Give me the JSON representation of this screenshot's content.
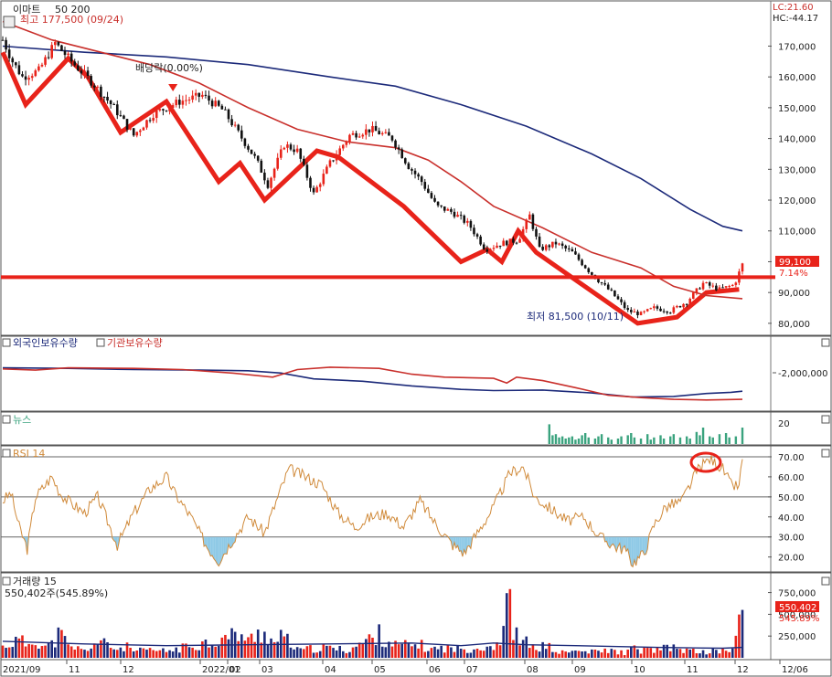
{
  "colors": {
    "up": "#e8231a",
    "down": "#111111",
    "ma50": "#c9302c",
    "ma200": "#1c2a7a",
    "support": "#e8231a",
    "foreign": "#1c2a7a",
    "inst": "#c9302c",
    "news": "#3aa37e",
    "rsi": "#d08a3a",
    "rsi_fill": "#8ec9e6",
    "vol_up": "#e8231a",
    "vol_down": "#1c2a7a",
    "vol_ma": "#1c2a7a",
    "grid": "#c8c8c8",
    "frame": "#555555"
  },
  "header": {
    "stock_name": "이마트",
    "ma_params": "50   200",
    "high_label": "최고 177,500 (09/24)",
    "lc": "LC:21.60",
    "hc": "HC:-44.17"
  },
  "annotations": {
    "dividend": "배당락(0.00%)",
    "low": "최저 81,500 (10/11)",
    "last_price": "99,100",
    "last_change": "7.14%"
  },
  "panels": {
    "holdings": {
      "foreign_label": "외국인보유수량",
      "inst_label": "기관보유수량",
      "tick": "-2,000,000"
    },
    "news": {
      "label": "뉴스",
      "tick": "20"
    },
    "rsi": {
      "label": "RSI 14"
    },
    "volume": {
      "label": "거래량  15",
      "sub_label": "550,402주(545.89%)",
      "last_volume": "550,402",
      "last_pct": "545.89%"
    }
  },
  "chart_data": [
    {
      "type": "candlestick",
      "x_ticks": [
        "2021/09",
        "11",
        "12",
        "2022/01",
        "02",
        "03",
        "04",
        "05",
        "06",
        "07",
        "08",
        "09",
        "10",
        "11",
        "12",
        "12/06"
      ],
      "y_ticks": [
        "170,000",
        "160,000",
        "150,000",
        "140,000",
        "130,000",
        "120,000",
        "110,000",
        "100,000",
        "90,000",
        "80,000"
      ],
      "ylim": [
        77000,
        182000
      ],
      "close": [
        [
          0,
          172000
        ],
        [
          6,
          165000
        ],
        [
          12,
          160000
        ],
        [
          22,
          162000
        ],
        [
          32,
          171000
        ],
        [
          42,
          165000
        ],
        [
          55,
          158000
        ],
        [
          68,
          150000
        ],
        [
          80,
          141000
        ],
        [
          92,
          148000
        ],
        [
          108,
          152000
        ],
        [
          122,
          154000
        ],
        [
          135,
          149000
        ],
        [
          145,
          141000
        ],
        [
          155,
          133000
        ],
        [
          162,
          125000
        ],
        [
          172,
          138000
        ],
        [
          180,
          136000
        ],
        [
          190,
          122000
        ],
        [
          200,
          132000
        ],
        [
          212,
          141000
        ],
        [
          225,
          143000
        ],
        [
          238,
          140000
        ],
        [
          248,
          131000
        ],
        [
          256,
          126000
        ],
        [
          265,
          118000
        ],
        [
          275,
          116000
        ],
        [
          285,
          112000
        ],
        [
          295,
          104000
        ],
        [
          305,
          106000
        ],
        [
          315,
          107000
        ],
        [
          322,
          115000
        ],
        [
          328,
          104000
        ],
        [
          338,
          106000
        ],
        [
          348,
          103000
        ],
        [
          360,
          96000
        ],
        [
          372,
          90000
        ],
        [
          382,
          84000
        ],
        [
          390,
          83000
        ],
        [
          398,
          85000
        ],
        [
          408,
          84000
        ],
        [
          418,
          87000
        ],
        [
          428,
          93000
        ],
        [
          438,
          91000
        ],
        [
          447,
          92500
        ],
        [
          452,
          99100
        ]
      ],
      "ma50": [
        [
          0,
          178000
        ],
        [
          30,
          172000
        ],
        [
          60,
          168000
        ],
        [
          90,
          164000
        ],
        [
          120,
          158000
        ],
        [
          150,
          150000
        ],
        [
          180,
          143000
        ],
        [
          210,
          139000
        ],
        [
          240,
          137000
        ],
        [
          260,
          133000
        ],
        [
          280,
          126000
        ],
        [
          300,
          118000
        ],
        [
          330,
          111000
        ],
        [
          360,
          103000
        ],
        [
          390,
          98000
        ],
        [
          410,
          92000
        ],
        [
          430,
          89000
        ],
        [
          452,
          88000
        ]
      ],
      "ma200": [
        [
          0,
          170000
        ],
        [
          50,
          168000
        ],
        [
          100,
          166500
        ],
        [
          150,
          164000
        ],
        [
          200,
          160000
        ],
        [
          240,
          157000
        ],
        [
          280,
          151000
        ],
        [
          320,
          144000
        ],
        [
          360,
          135000
        ],
        [
          390,
          127000
        ],
        [
          420,
          117000
        ],
        [
          440,
          111500
        ],
        [
          452,
          110000
        ]
      ],
      "support_level": 95000,
      "zigzag": [
        [
          0,
          168000
        ],
        [
          14,
          151000
        ],
        [
          40,
          166000
        ],
        [
          52,
          160000
        ],
        [
          72,
          142000
        ],
        [
          100,
          152000
        ],
        [
          132,
          126000
        ],
        [
          145,
          132000
        ],
        [
          160,
          120000
        ],
        [
          192,
          136000
        ],
        [
          205,
          134000
        ],
        [
          245,
          118000
        ],
        [
          280,
          100000
        ],
        [
          296,
          104000
        ],
        [
          305,
          100000
        ],
        [
          315,
          110000
        ],
        [
          326,
          103000
        ],
        [
          388,
          80000
        ],
        [
          412,
          82000
        ],
        [
          430,
          90000
        ],
        [
          450,
          91000
        ]
      ],
      "high_marker": 177500,
      "dividend_marker_x": 104
    },
    {
      "type": "line",
      "name_foreign": "외국인보유수량",
      "name_inst": "기관보유수량",
      "foreign": [
        [
          0,
          0.29
        ],
        [
          40,
          0.3
        ],
        [
          80,
          0.32
        ],
        [
          120,
          0.33
        ],
        [
          150,
          0.34
        ],
        [
          170,
          0.38
        ],
        [
          190,
          0.48
        ],
        [
          220,
          0.52
        ],
        [
          250,
          0.6
        ],
        [
          280,
          0.66
        ],
        [
          300,
          0.68
        ],
        [
          330,
          0.67
        ],
        [
          360,
          0.72
        ],
        [
          385,
          0.79
        ],
        [
          410,
          0.78
        ],
        [
          430,
          0.73
        ],
        [
          445,
          0.71
        ],
        [
          452,
          0.69
        ]
      ],
      "inst": [
        [
          0,
          0.31
        ],
        [
          20,
          0.33
        ],
        [
          40,
          0.29
        ],
        [
          80,
          0.3
        ],
        [
          110,
          0.32
        ],
        [
          140,
          0.38
        ],
        [
          165,
          0.45
        ],
        [
          180,
          0.32
        ],
        [
          200,
          0.28
        ],
        [
          230,
          0.3
        ],
        [
          250,
          0.4
        ],
        [
          270,
          0.45
        ],
        [
          300,
          0.47
        ],
        [
          308,
          0.55
        ],
        [
          314,
          0.45
        ],
        [
          330,
          0.51
        ],
        [
          350,
          0.63
        ],
        [
          370,
          0.76
        ],
        [
          390,
          0.8
        ],
        [
          410,
          0.83
        ],
        [
          430,
          0.84
        ],
        [
          452,
          0.83
        ]
      ]
    },
    {
      "type": "bar",
      "name": "뉴스",
      "values": [
        [
          334,
          18
        ],
        [
          336,
          8
        ],
        [
          338,
          9
        ],
        [
          340,
          6
        ],
        [
          342,
          7
        ],
        [
          344,
          5
        ],
        [
          346,
          6
        ],
        [
          348,
          7
        ],
        [
          350,
          4
        ],
        [
          352,
          5
        ],
        [
          354,
          8
        ],
        [
          356,
          10
        ],
        [
          358,
          6
        ],
        [
          362,
          5
        ],
        [
          364,
          7
        ],
        [
          366,
          9
        ],
        [
          370,
          6
        ],
        [
          372,
          4
        ],
        [
          376,
          5
        ],
        [
          378,
          7
        ],
        [
          382,
          8
        ],
        [
          384,
          10
        ],
        [
          386,
          6
        ],
        [
          390,
          5
        ],
        [
          394,
          9
        ],
        [
          396,
          4
        ],
        [
          398,
          6
        ],
        [
          402,
          8
        ],
        [
          404,
          5
        ],
        [
          408,
          7
        ],
        [
          410,
          9
        ],
        [
          414,
          6
        ],
        [
          418,
          7
        ],
        [
          420,
          5
        ],
        [
          424,
          11
        ],
        [
          426,
          8
        ],
        [
          428,
          15
        ],
        [
          432,
          7
        ],
        [
          434,
          6
        ],
        [
          438,
          9
        ],
        [
          442,
          10
        ],
        [
          444,
          6
        ],
        [
          448,
          7
        ],
        [
          452,
          15
        ]
      ]
    },
    {
      "type": "line",
      "name": "RSI 14",
      "yticks": [
        "70.00",
        "60.00",
        "50.00",
        "40.00",
        "30.00",
        "20.00"
      ],
      "ylim": [
        13,
        75
      ],
      "levels": [
        70,
        50,
        30
      ],
      "values": [
        [
          0,
          48
        ],
        [
          5,
          52
        ],
        [
          10,
          35
        ],
        [
          15,
          24
        ],
        [
          20,
          50
        ],
        [
          30,
          60
        ],
        [
          35,
          52
        ],
        [
          40,
          48
        ],
        [
          50,
          42
        ],
        [
          58,
          50
        ],
        [
          65,
          36
        ],
        [
          70,
          26
        ],
        [
          80,
          42
        ],
        [
          90,
          54
        ],
        [
          100,
          60
        ],
        [
          105,
          52
        ],
        [
          115,
          40
        ],
        [
          125,
          25
        ],
        [
          132,
          18
        ],
        [
          140,
          28
        ],
        [
          150,
          40
        ],
        [
          160,
          32
        ],
        [
          170,
          54
        ],
        [
          175,
          64
        ],
        [
          185,
          60
        ],
        [
          195,
          56
        ],
        [
          205,
          42
        ],
        [
          215,
          35
        ],
        [
          225,
          40
        ],
        [
          235,
          42
        ],
        [
          245,
          35
        ],
        [
          255,
          48
        ],
        [
          265,
          36
        ],
        [
          275,
          26
        ],
        [
          282,
          22
        ],
        [
          290,
          32
        ],
        [
          300,
          45
        ],
        [
          310,
          62
        ],
        [
          318,
          65
        ],
        [
          325,
          50
        ],
        [
          335,
          44
        ],
        [
          345,
          38
        ],
        [
          355,
          40
        ],
        [
          365,
          30
        ],
        [
          375,
          25
        ],
        [
          380,
          24
        ],
        [
          385,
          17
        ],
        [
          392,
          22
        ],
        [
          398,
          36
        ],
        [
          405,
          45
        ],
        [
          415,
          48
        ],
        [
          425,
          64
        ],
        [
          432,
          69
        ],
        [
          440,
          64
        ],
        [
          445,
          56
        ],
        [
          450,
          55
        ],
        [
          452,
          69
        ]
      ]
    },
    {
      "type": "bar",
      "name": "거래량",
      "yticks": [
        "750,000",
        "500,000",
        "250,000"
      ],
      "ylim": [
        0,
        840000
      ],
      "ma": [
        [
          0,
          190000
        ],
        [
          50,
          160000
        ],
        [
          100,
          140000
        ],
        [
          150,
          150000
        ],
        [
          200,
          160000
        ],
        [
          250,
          170000
        ],
        [
          280,
          140000
        ],
        [
          300,
          170000
        ],
        [
          320,
          150000
        ],
        [
          350,
          140000
        ],
        [
          400,
          120000
        ],
        [
          440,
          110000
        ],
        [
          452,
          120000
        ]
      ],
      "values": [
        [
          0,
          130000
        ],
        [
          5,
          180000
        ],
        [
          10,
          210000
        ],
        [
          15,
          160000
        ],
        [
          20,
          240000
        ],
        [
          25,
          130000
        ],
        [
          30,
          160000
        ],
        [
          35,
          300000
        ],
        [
          40,
          130000
        ],
        [
          45,
          120000
        ],
        [
          50,
          80000
        ],
        [
          55,
          170000
        ],
        [
          60,
          180000
        ],
        [
          65,
          150000
        ],
        [
          70,
          100000
        ],
        [
          75,
          140000
        ],
        [
          80,
          80000
        ],
        [
          90,
          90000
        ],
        [
          100,
          80000
        ],
        [
          110,
          120000
        ],
        [
          120,
          170000
        ],
        [
          130,
          200000
        ],
        [
          140,
          260000
        ],
        [
          145,
          300000
        ],
        [
          150,
          190000
        ],
        [
          155,
          280000
        ],
        [
          160,
          320000
        ],
        [
          165,
          170000
        ],
        [
          170,
          240000
        ],
        [
          175,
          200000
        ],
        [
          180,
          90000
        ],
        [
          190,
          110000
        ],
        [
          200,
          120000
        ],
        [
          210,
          90000
        ],
        [
          220,
          180000
        ],
        [
          230,
          280000
        ],
        [
          240,
          150000
        ],
        [
          250,
          150000
        ],
        [
          255,
          160000
        ],
        [
          260,
          100000
        ],
        [
          270,
          120000
        ],
        [
          280,
          100000
        ],
        [
          290,
          120000
        ],
        [
          300,
          150000
        ],
        [
          305,
          230000
        ],
        [
          310,
          790000
        ],
        [
          312,
          380000
        ],
        [
          315,
          200000
        ],
        [
          320,
          180000
        ],
        [
          325,
          110000
        ],
        [
          330,
          140000
        ],
        [
          335,
          120000
        ],
        [
          340,
          60000
        ],
        [
          350,
          80000
        ],
        [
          360,
          70000
        ],
        [
          370,
          90000
        ],
        [
          380,
          60000
        ],
        [
          385,
          110000
        ],
        [
          390,
          90000
        ],
        [
          400,
          100000
        ],
        [
          410,
          120000
        ],
        [
          420,
          80000
        ],
        [
          430,
          70000
        ],
        [
          440,
          90000
        ],
        [
          446,
          100000
        ],
        [
          452,
          550402
        ]
      ]
    }
  ]
}
